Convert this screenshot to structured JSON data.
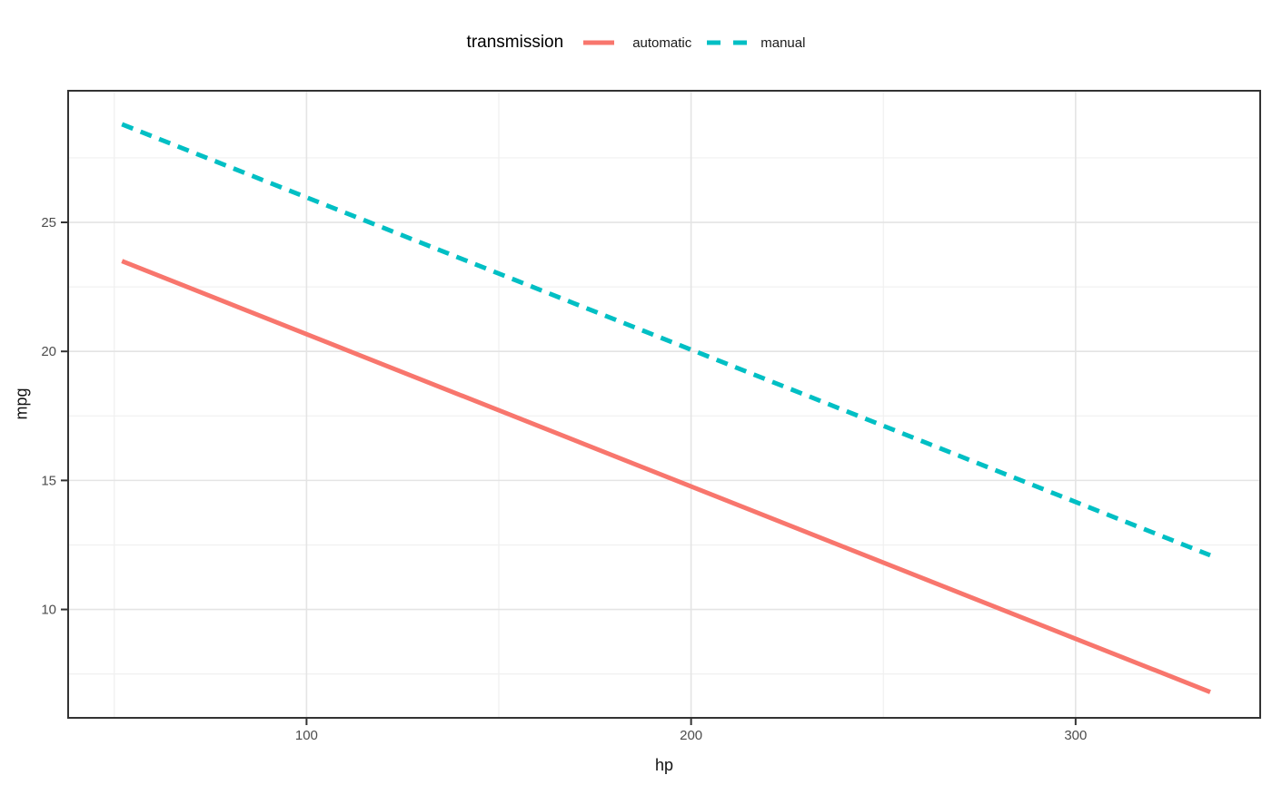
{
  "chart_data": {
    "type": "line",
    "title": "",
    "xlabel": "hp",
    "ylabel": "mpg",
    "xlim": [
      38,
      348
    ],
    "ylim": [
      5.8,
      30.1
    ],
    "x_ticks": [
      100,
      200,
      300
    ],
    "x_minor": [
      50,
      150,
      250
    ],
    "y_ticks": [
      10,
      15,
      20,
      25
    ],
    "y_minor": [
      7.5,
      12.5,
      17.5,
      22.5,
      27.5
    ],
    "grid": "major and minor, light gray on white panel",
    "legend": {
      "title": "transmission",
      "position": "top-center"
    },
    "series": [
      {
        "name": "automatic",
        "color": "#F8766D",
        "linetype": "solid",
        "x": [
          52,
          335
        ],
        "y": [
          23.5,
          6.8
        ]
      },
      {
        "name": "manual",
        "color": "#00BFC4",
        "linetype": "dashed",
        "x": [
          52,
          335
        ],
        "y": [
          28.8,
          12.1
        ]
      }
    ],
    "theme": {
      "panel_border": "#333333",
      "grid_major": "#E4E4E4",
      "grid_minor": "#F0F0F0",
      "tick_color": "#333333",
      "tick_label_color": "#4D4D4D",
      "axis_title_color": "#111111"
    }
  }
}
